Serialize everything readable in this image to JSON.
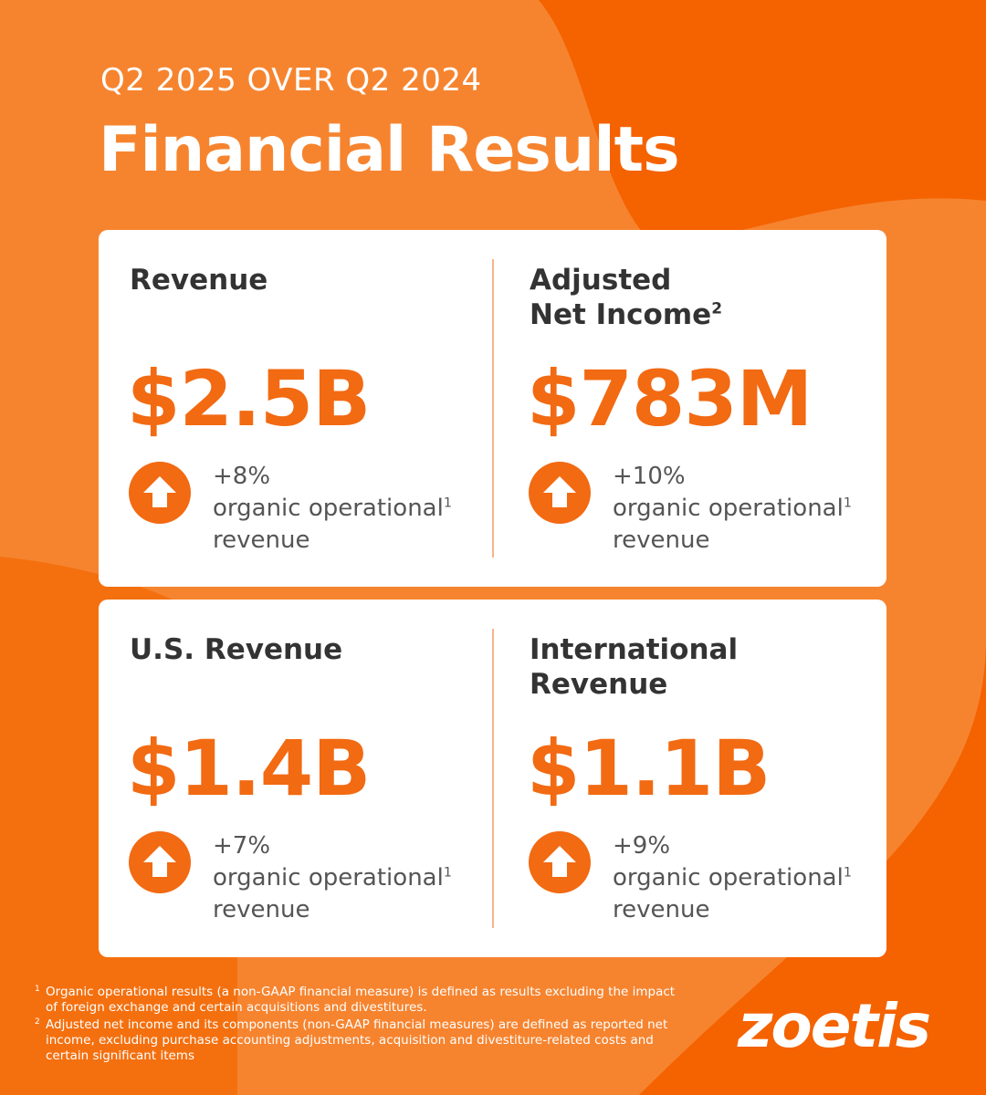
{
  "header": {
    "kicker": "Q2 2025 OVER Q2 2024",
    "title": "Financial Results"
  },
  "cards": [
    {
      "metrics": [
        {
          "label": [
            "Revenue"
          ],
          "value": "$2.5B",
          "change": "+8%",
          "description": "organic operational",
          "description_note": "1",
          "description_end": "revenue"
        },
        {
          "label": [
            "Adjusted",
            "Net Income"
          ],
          "label_note": "2",
          "value": "$783M",
          "change": "+10%",
          "description": "organic operational",
          "description_note": "1",
          "description_end": "revenue"
        }
      ]
    },
    {
      "metrics": [
        {
          "label": [
            "U.S. Revenue"
          ],
          "value": "$1.4B",
          "change": "+7%",
          "description": "organic operational",
          "description_note": "1",
          "description_end": "revenue"
        },
        {
          "label": [
            "International",
            "Revenue"
          ],
          "value": "$1.1B",
          "change": "+9%",
          "description": "organic operational",
          "description_note": "1",
          "description_end": "revenue"
        }
      ]
    }
  ],
  "footnotes": [
    {
      "marker": "1",
      "text": "Organic operational results (a non-GAAP financial measure) is defined as results excluding the impact of foreign exchange and certain acquisitions and divestitures."
    },
    {
      "marker": "2",
      "text": "Adjusted net income and its components (non-GAAP financial measures) are defined as reported net income, excluding purchase accounting adjustments, acquisition and divestiture-related costs and certain significant items"
    }
  ],
  "logo": "zoetis"
}
